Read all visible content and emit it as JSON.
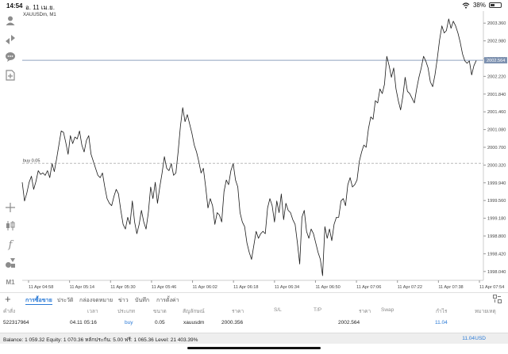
{
  "status_bar": {
    "time": "14:54",
    "date": "อ. 11 เม.ย.",
    "battery": "38%",
    "battery_level": 0.38
  },
  "chart": {
    "symbol_title": "XAUUSDm, M1",
    "order_line_label": "buy 0.05",
    "current_price": "2002.564",
    "colors": {
      "line": "#1a1a1a",
      "bid_line": "#8fa3bf",
      "price_label_bg": "#7d91b0",
      "order_line": "#bbbbbb",
      "axis_text": "#444444"
    }
  },
  "chart_data": {
    "type": "line",
    "title": "XAUUSDm, M1",
    "y_ticks": [
      "2003.360",
      "2002.980",
      "2002.600",
      "2002.220",
      "2001.840",
      "2001.460",
      "2001.080",
      "2000.700",
      "2000.320",
      "1999.940",
      "1999.560",
      "1999.180",
      "1998.800",
      "1998.420",
      "1998.040"
    ],
    "x_ticks": [
      "11 Apr 04:58",
      "11 Apr 05:14",
      "11 Apr 05:30",
      "11 Apr 05:46",
      "11 Apr 06:02",
      "11 Apr 06:18",
      "11 Apr 06:34",
      "11 Apr 06:50",
      "11 Apr 07:06",
      "11 Apr 07:22",
      "11 Apr 07:38",
      "11 Apr 07:54"
    ],
    "ylim": [
      1997.85,
      2003.55
    ],
    "order_level": 2000.356,
    "bid_level": 2002.564,
    "series": [
      {
        "values": [
          1999.95,
          1999.55,
          1999.72,
          1999.95,
          2000.08,
          1999.8,
          1999.97,
          2000.2,
          2000.12,
          2000.15,
          2000.1,
          2000.2,
          2000.05,
          2000.35,
          2000.18,
          2000.45,
          2000.75,
          2001.05,
          2001.02,
          2000.8,
          2000.55,
          2000.95,
          2000.78,
          2000.92,
          2000.88,
          2001.05,
          2000.75,
          2000.6,
          2000.85,
          2000.95,
          2000.55,
          2000.4,
          2000.25,
          2000.1,
          2000.05,
          2000.15,
          1999.85,
          1999.6,
          1999.5,
          1999.45,
          1999.65,
          1999.8,
          1999.7,
          1999.35,
          1999.05,
          1998.95,
          1999.2,
          1999.05,
          1999.55,
          1999.1,
          1998.85,
          1999.05,
          1999.35,
          1999.1,
          1998.95,
          1999.3,
          1999.85,
          1999.6,
          1999.95,
          1999.5,
          1999.85,
          2000.15,
          2000.5,
          2000.25,
          2000.2,
          2000.35,
          2000.1,
          2000.15,
          2000.6,
          2001.15,
          2001.55,
          2001.25,
          2001.4,
          2001.2,
          2001.0,
          2000.75,
          2000.6,
          2000.4,
          2000.15,
          2000.25,
          1999.85,
          1999.4,
          1999.6,
          1999.45,
          1999.05,
          1999.3,
          1999.25,
          1999.1,
          1999.75,
          2000.0,
          1999.9,
          2000.2,
          2000.35,
          2000.0,
          1999.85,
          1999.3,
          1999.1,
          1999.0,
          1998.65,
          1998.45,
          1998.3,
          1998.6,
          1998.9,
          1998.75,
          1998.85,
          1998.9,
          1998.85,
          1999.4,
          1999.6,
          1999.45,
          1999.1,
          1999.55,
          1999.3,
          1999.7,
          1999.15,
          1999.5,
          1999.35,
          1999.3,
          1999.15,
          1999.05,
          1998.65,
          1998.2,
          1999.2,
          1999.35,
          1998.9,
          1998.75,
          1998.95,
          1998.85,
          1998.65,
          1998.45,
          1998.3,
          1997.95,
          1999.0,
          1998.75,
          1998.95,
          1998.7,
          1999.05,
          1999.2,
          1999.2,
          1999.55,
          1999.6,
          1999.45,
          1999.9,
          2000.05,
          1999.85,
          1999.9,
          2000.0,
          2000.4,
          2000.6,
          2000.75,
          2000.7,
          2001.1,
          2001.35,
          2001.3,
          2001.7,
          2001.65,
          2001.95,
          2001.85,
          2002.05,
          2002.65,
          2002.45,
          2002.2,
          2002.4,
          2001.95,
          2001.7,
          2001.5,
          2001.8,
          2002.2,
          2001.9,
          2001.85,
          2001.75,
          2001.65,
          2001.95,
          2002.2,
          2002.4,
          2002.65,
          2002.55,
          2002.4,
          2002.1,
          2002.0,
          2002.25,
          2002.6,
          2003.0,
          2003.3,
          2003.15,
          2003.2,
          2003.45,
          2003.25,
          2003.4,
          2003.3,
          2003.15,
          2002.95,
          2002.7,
          2002.55,
          2002.5,
          2002.55,
          2002.25,
          2002.45,
          2002.56
        ]
      }
    ]
  },
  "toolbar_icons": [
    "user-icon",
    "trade-arrows-icon",
    "chat-icon",
    "add-document-icon",
    "crosshair-icon",
    "candles-icon",
    "function-icon",
    "objects-icon",
    "timeframe-icon"
  ],
  "toolbar": {
    "timeframe": "M1",
    "function_glyph": "f"
  },
  "tabs": {
    "items": [
      {
        "label": "การซื้อขาย",
        "active": true
      },
      {
        "label": "ประวัติ",
        "active": false
      },
      {
        "label": "กล่องจดหมาย",
        "active": false
      },
      {
        "label": "ข่าว",
        "active": false
      },
      {
        "label": "บันทึก",
        "active": false
      },
      {
        "label": "การตั้งค่า",
        "active": false
      }
    ]
  },
  "trade_table": {
    "headers": [
      "คำสั่ง",
      "เวลา",
      "ประเภท",
      "ขนาด",
      "สัญลักษณ์",
      "ราคา",
      "S/L",
      "T/P",
      "ราคา",
      "Swap",
      "กำไร",
      "หมายเหตุ"
    ],
    "rows": [
      {
        "order": "522317964",
        "time": "04.11 05:16",
        "type": "buy",
        "size": "0.05",
        "symbol": "xauusdm",
        "open_price": "2000.356",
        "sl": "",
        "tp": "",
        "price": "2002.564",
        "swap": "",
        "profit": "11.04",
        "comment": ""
      }
    ]
  },
  "balance_bar": {
    "text": "Balance: 1 059.32 Equity: 1 070.36 หลักประกัน: 5.00 ฟรี: 1 065.36 Level: 21 403.39%",
    "profit": "11.04",
    "currency": "USD"
  }
}
